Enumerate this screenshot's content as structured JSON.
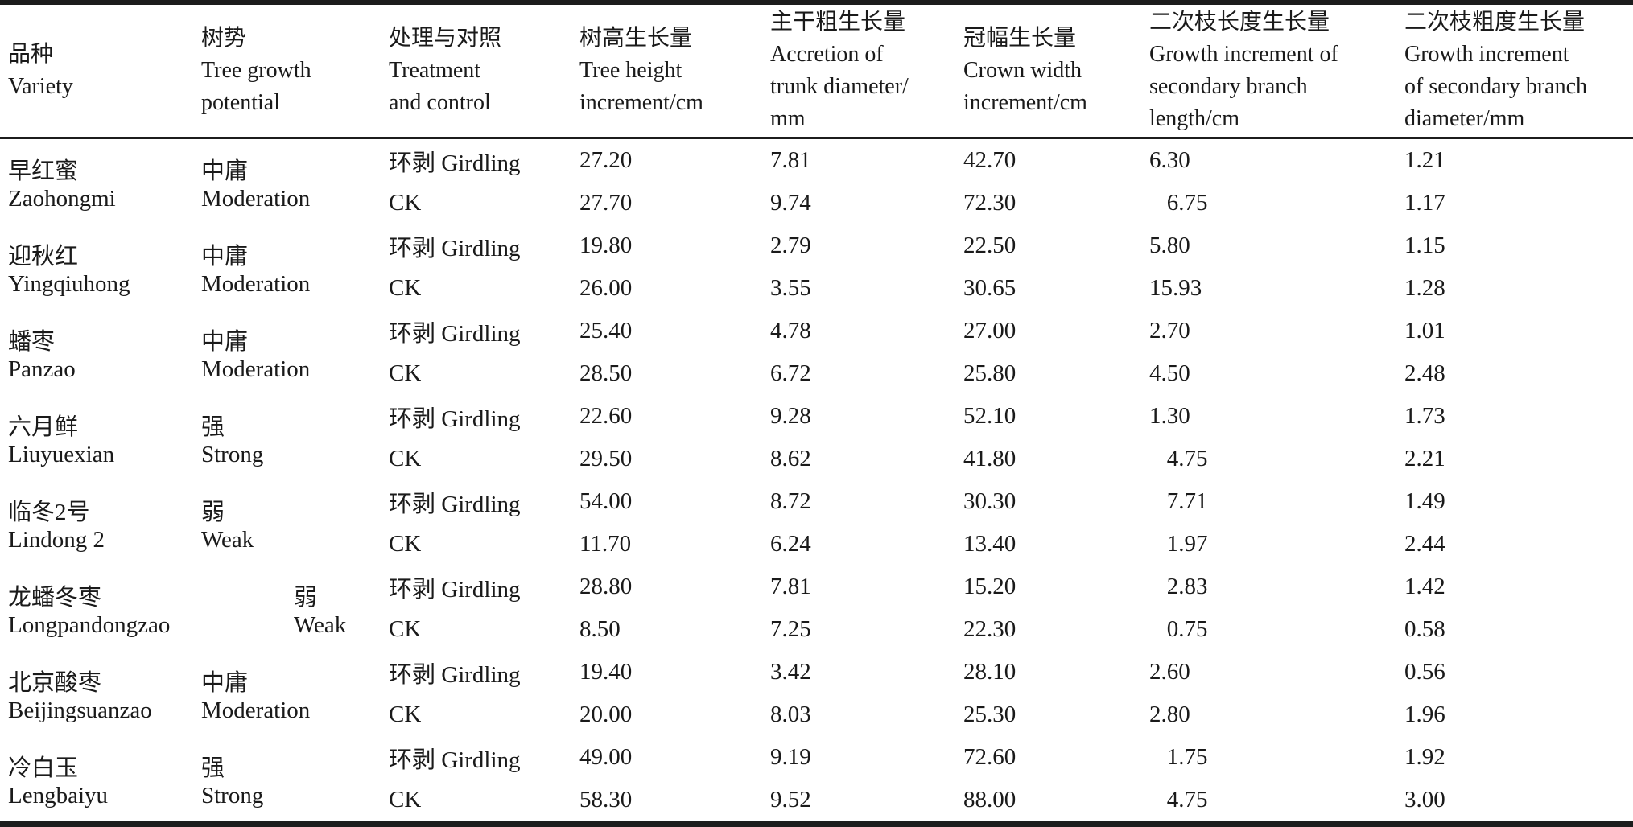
{
  "table": {
    "columns": [
      "品种\nVariety",
      "树势\nTree growth\npotential",
      "处理与对照\nTreatment\nand control",
      "树高生长量\nTree height\nincrement/cm",
      "主干粗生长量\nAccretion of\ntrunk diameter/\nmm",
      "冠幅生长量\nCrown width\nincrement/cm",
      "二次枝长度生长量\nGrowth increment of\nsecondary branch\nlength/cm",
      "二次枝粗度生长量\nGrowth increment\nof secondary branch\ndiameter/mm"
    ],
    "rows": [
      {
        "variety": "早红蜜\nZaohongmi",
        "vigor": "中庸\nModeration",
        "girdling": {
          "label": "环剥 Girdling",
          "tree_height": "27.20",
          "trunk_diameter": "7.81",
          "crown_width": "42.70",
          "branch_length": "6.30",
          "branch_diameter": "1.21"
        },
        "ck": {
          "label": "CK",
          "tree_height": "27.70",
          "trunk_diameter": "9.74",
          "crown_width": "72.30",
          "branch_length": "  6.75",
          "branch_diameter": "1.17"
        }
      },
      {
        "variety": "迎秋红\nYingqiuhong",
        "vigor": "中庸\nModeration",
        "girdling": {
          "label": "环剥 Girdling",
          "tree_height": "19.80",
          "trunk_diameter": "2.79",
          "crown_width": "22.50",
          "branch_length": "5.80",
          "branch_diameter": "1.15"
        },
        "ck": {
          "label": "CK",
          "tree_height": "26.00",
          "trunk_diameter": "3.55",
          "crown_width": "30.65",
          "branch_length": "15.93",
          "branch_diameter": "1.28"
        }
      },
      {
        "variety": "蟠枣\nPanzao",
        "vigor": "中庸\nModeration",
        "girdling": {
          "label": "环剥 Girdling",
          "tree_height": "25.40",
          "trunk_diameter": "4.78",
          "crown_width": "27.00",
          "branch_length": "2.70",
          "branch_diameter": "1.01"
        },
        "ck": {
          "label": "CK",
          "tree_height": "28.50",
          "trunk_diameter": "6.72",
          "crown_width": "25.80",
          "branch_length": "4.50",
          "branch_diameter": "2.48"
        }
      },
      {
        "variety": "六月鲜\nLiuyuexian",
        "vigor": "强\nStrong",
        "girdling": {
          "label": "环剥 Girdling",
          "tree_height": "22.60",
          "trunk_diameter": "9.28",
          "crown_width": "52.10",
          "branch_length": "1.30",
          "branch_diameter": "1.73"
        },
        "ck": {
          "label": "CK",
          "tree_height": "29.50",
          "trunk_diameter": "8.62",
          "crown_width": "41.80",
          "branch_length": "  4.75",
          "branch_diameter": "2.21"
        }
      },
      {
        "variety": "临冬2号\nLindong 2",
        "vigor": "弱\nWeak",
        "girdling": {
          "label": "环剥 Girdling",
          "tree_height": "54.00",
          "trunk_diameter": "8.72",
          "crown_width": "30.30",
          "branch_length": "  7.71",
          "branch_diameter": "1.49"
        },
        "ck": {
          "label": "CK",
          "tree_height": "11.70",
          "trunk_diameter": "6.24",
          "crown_width": "13.40",
          "branch_length": "  1.97",
          "branch_diameter": "2.44"
        }
      },
      {
        "variety": "龙蟠冬枣\nLongpandongzao",
        "vigor": "弱\nWeak",
        "girdling": {
          "label": "环剥 Girdling",
          "tree_height": "28.80",
          "trunk_diameter": "7.81",
          "crown_width": "15.20",
          "branch_length": "  2.83",
          "branch_diameter": "1.42"
        },
        "ck": {
          "label": "CK",
          "tree_height": "8.50",
          "trunk_diameter": "7.25",
          "crown_width": "22.30",
          "branch_length": "  0.75",
          "branch_diameter": "0.58"
        }
      },
      {
        "variety": "北京酸枣\nBeijingsuanzao",
        "vigor": "中庸\nModeration",
        "girdling": {
          "label": "环剥 Girdling",
          "tree_height": "19.40",
          "trunk_diameter": "3.42",
          "crown_width": "28.10",
          "branch_length": "2.60",
          "branch_diameter": "0.56"
        },
        "ck": {
          "label": "CK",
          "tree_height": "20.00",
          "trunk_diameter": "8.03",
          "crown_width": "25.30",
          "branch_length": "2.80",
          "branch_diameter": "1.96"
        }
      },
      {
        "variety": "冷白玉\nLengbaiyu",
        "vigor": "强\nStrong",
        "girdling": {
          "label": "环剥 Girdling",
          "tree_height": "49.00",
          "trunk_diameter": "9.19",
          "crown_width": "72.60",
          "branch_length": "  1.75",
          "branch_diameter": "1.92"
        },
        "ck": {
          "label": "CK",
          "tree_height": "58.30",
          "trunk_diameter": "9.52",
          "crown_width": "88.00",
          "branch_length": "  4.75",
          "branch_diameter": "3.00"
        }
      }
    ]
  }
}
